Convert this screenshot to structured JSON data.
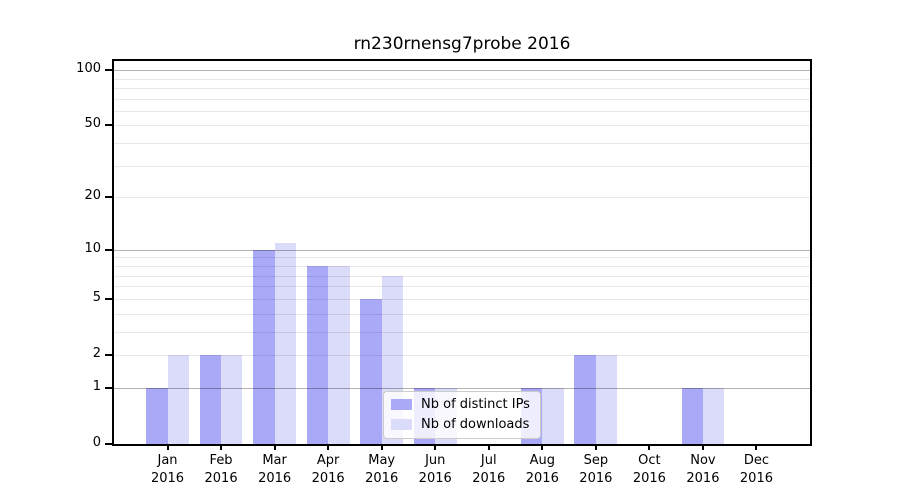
{
  "title": "rn230rnensg7probe 2016",
  "chart_data": {
    "type": "bar",
    "title": "rn230rnensg7probe 2016",
    "categories": [
      "Jan",
      "Feb",
      "Mar",
      "Apr",
      "May",
      "Jun",
      "Jul",
      "Aug",
      "Sep",
      "Oct",
      "Nov",
      "Dec"
    ],
    "year": "2016",
    "series": [
      {
        "name": "Nb of distinct IPs",
        "color": "#a9a9f8",
        "values": [
          1,
          2,
          10,
          8,
          5,
          1,
          0,
          1,
          2,
          0,
          1,
          0
        ]
      },
      {
        "name": "Nb of downloads",
        "color": "#dbdbfa",
        "values": [
          2,
          2,
          11,
          8,
          7,
          1,
          0,
          1,
          2,
          0,
          1,
          0
        ]
      }
    ],
    "yscale": "log1p",
    "ylim": [
      0,
      112
    ],
    "y_tick_values": [
      0,
      1,
      2,
      5,
      10,
      20,
      50,
      100
    ],
    "y_major_gridlines": [
      1,
      10,
      100
    ],
    "y_minor_gridlines": [
      2,
      3,
      4,
      5,
      6,
      7,
      8,
      9,
      20,
      30,
      40,
      50,
      60,
      70,
      80,
      90
    ],
    "grid": true,
    "bar_width_fraction": 0.4,
    "legend_position": "lower center-right"
  },
  "colors": {
    "background": "#ffffff",
    "axis": "#000000",
    "major_grid": "#b3b3b3",
    "minor_grid": "#e8e8e8",
    "legend_border": "#cccccc"
  }
}
